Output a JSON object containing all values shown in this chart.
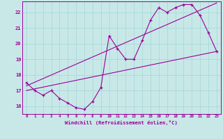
{
  "xlabel": "Windchill (Refroidissement éolien,°C)",
  "bg_color": "#c8e8e8",
  "grid_color": "#a8d8d8",
  "line_color": "#990099",
  "x_data": [
    0,
    1,
    2,
    3,
    4,
    5,
    6,
    7,
    8,
    9,
    10,
    11,
    12,
    13,
    14,
    15,
    16,
    17,
    18,
    19,
    20,
    21,
    22,
    23
  ],
  "y_data": [
    17.5,
    17.0,
    16.7,
    17.0,
    16.5,
    16.2,
    15.9,
    15.8,
    16.3,
    17.2,
    20.5,
    19.7,
    19.0,
    19.0,
    20.2,
    21.5,
    22.3,
    22.0,
    22.3,
    22.5,
    22.5,
    21.8,
    20.7,
    19.5
  ],
  "ylim": [
    15.5,
    22.7
  ],
  "xlim": [
    -0.5,
    23.5
  ],
  "yticks": [
    16,
    17,
    18,
    19,
    20,
    21,
    22
  ],
  "xticks": [
    0,
    1,
    2,
    3,
    4,
    5,
    6,
    7,
    8,
    9,
    10,
    11,
    12,
    13,
    14,
    15,
    16,
    17,
    18,
    19,
    20,
    21,
    22,
    23
  ],
  "upper_line": [
    17.3,
    22.6
  ],
  "lower_line": [
    17.0,
    19.5
  ]
}
